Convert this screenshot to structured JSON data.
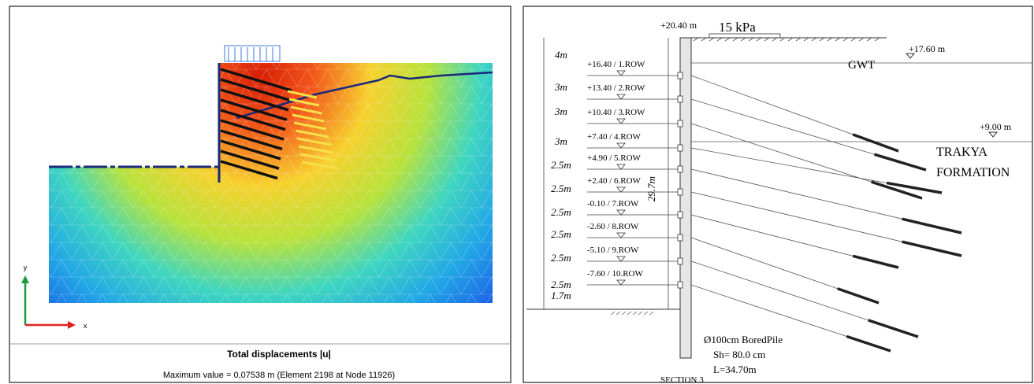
{
  "left_panel": {
    "axes": {
      "y": "y",
      "x": "x"
    },
    "caption": {
      "title": "Total displacements |u|",
      "subtitle": "Maximum value = 0,07538 m (Element 2198 at Node 11926)"
    }
  },
  "right_panel": {
    "top_level": "+20.40 m",
    "surcharge": "15 kPa",
    "gwt_level": "+17.60 m",
    "gwt": "GWT",
    "formation_level": "+9.00 m",
    "formation": [
      "TRAKYA",
      "FORMATION"
    ],
    "rows": [
      "+16.40 / 1.ROW",
      "+13.40 / 2.ROW",
      "+10.40 / 3.ROW",
      "+7.40 / 4.ROW",
      "+4.90 / 5.ROW",
      "+2.40 / 6.ROW",
      "-0.10 / 7.ROW",
      "-2.60 / 8.ROW",
      "-5.10 / 9.ROW",
      "-7.60 / 10.ROW"
    ],
    "spacings": [
      "4m",
      "3m",
      "3m",
      "3m",
      "2.5m",
      "2.5m",
      "2.5m",
      "2.5m",
      "2.5m",
      "2.5m",
      "1.7m"
    ],
    "pile_length": "29.7m",
    "pile_notes": [
      "Ø100cm BoredPile",
      "Sh= 80.0 cm",
      "L=34.70m"
    ],
    "section": "SECTION 3"
  }
}
